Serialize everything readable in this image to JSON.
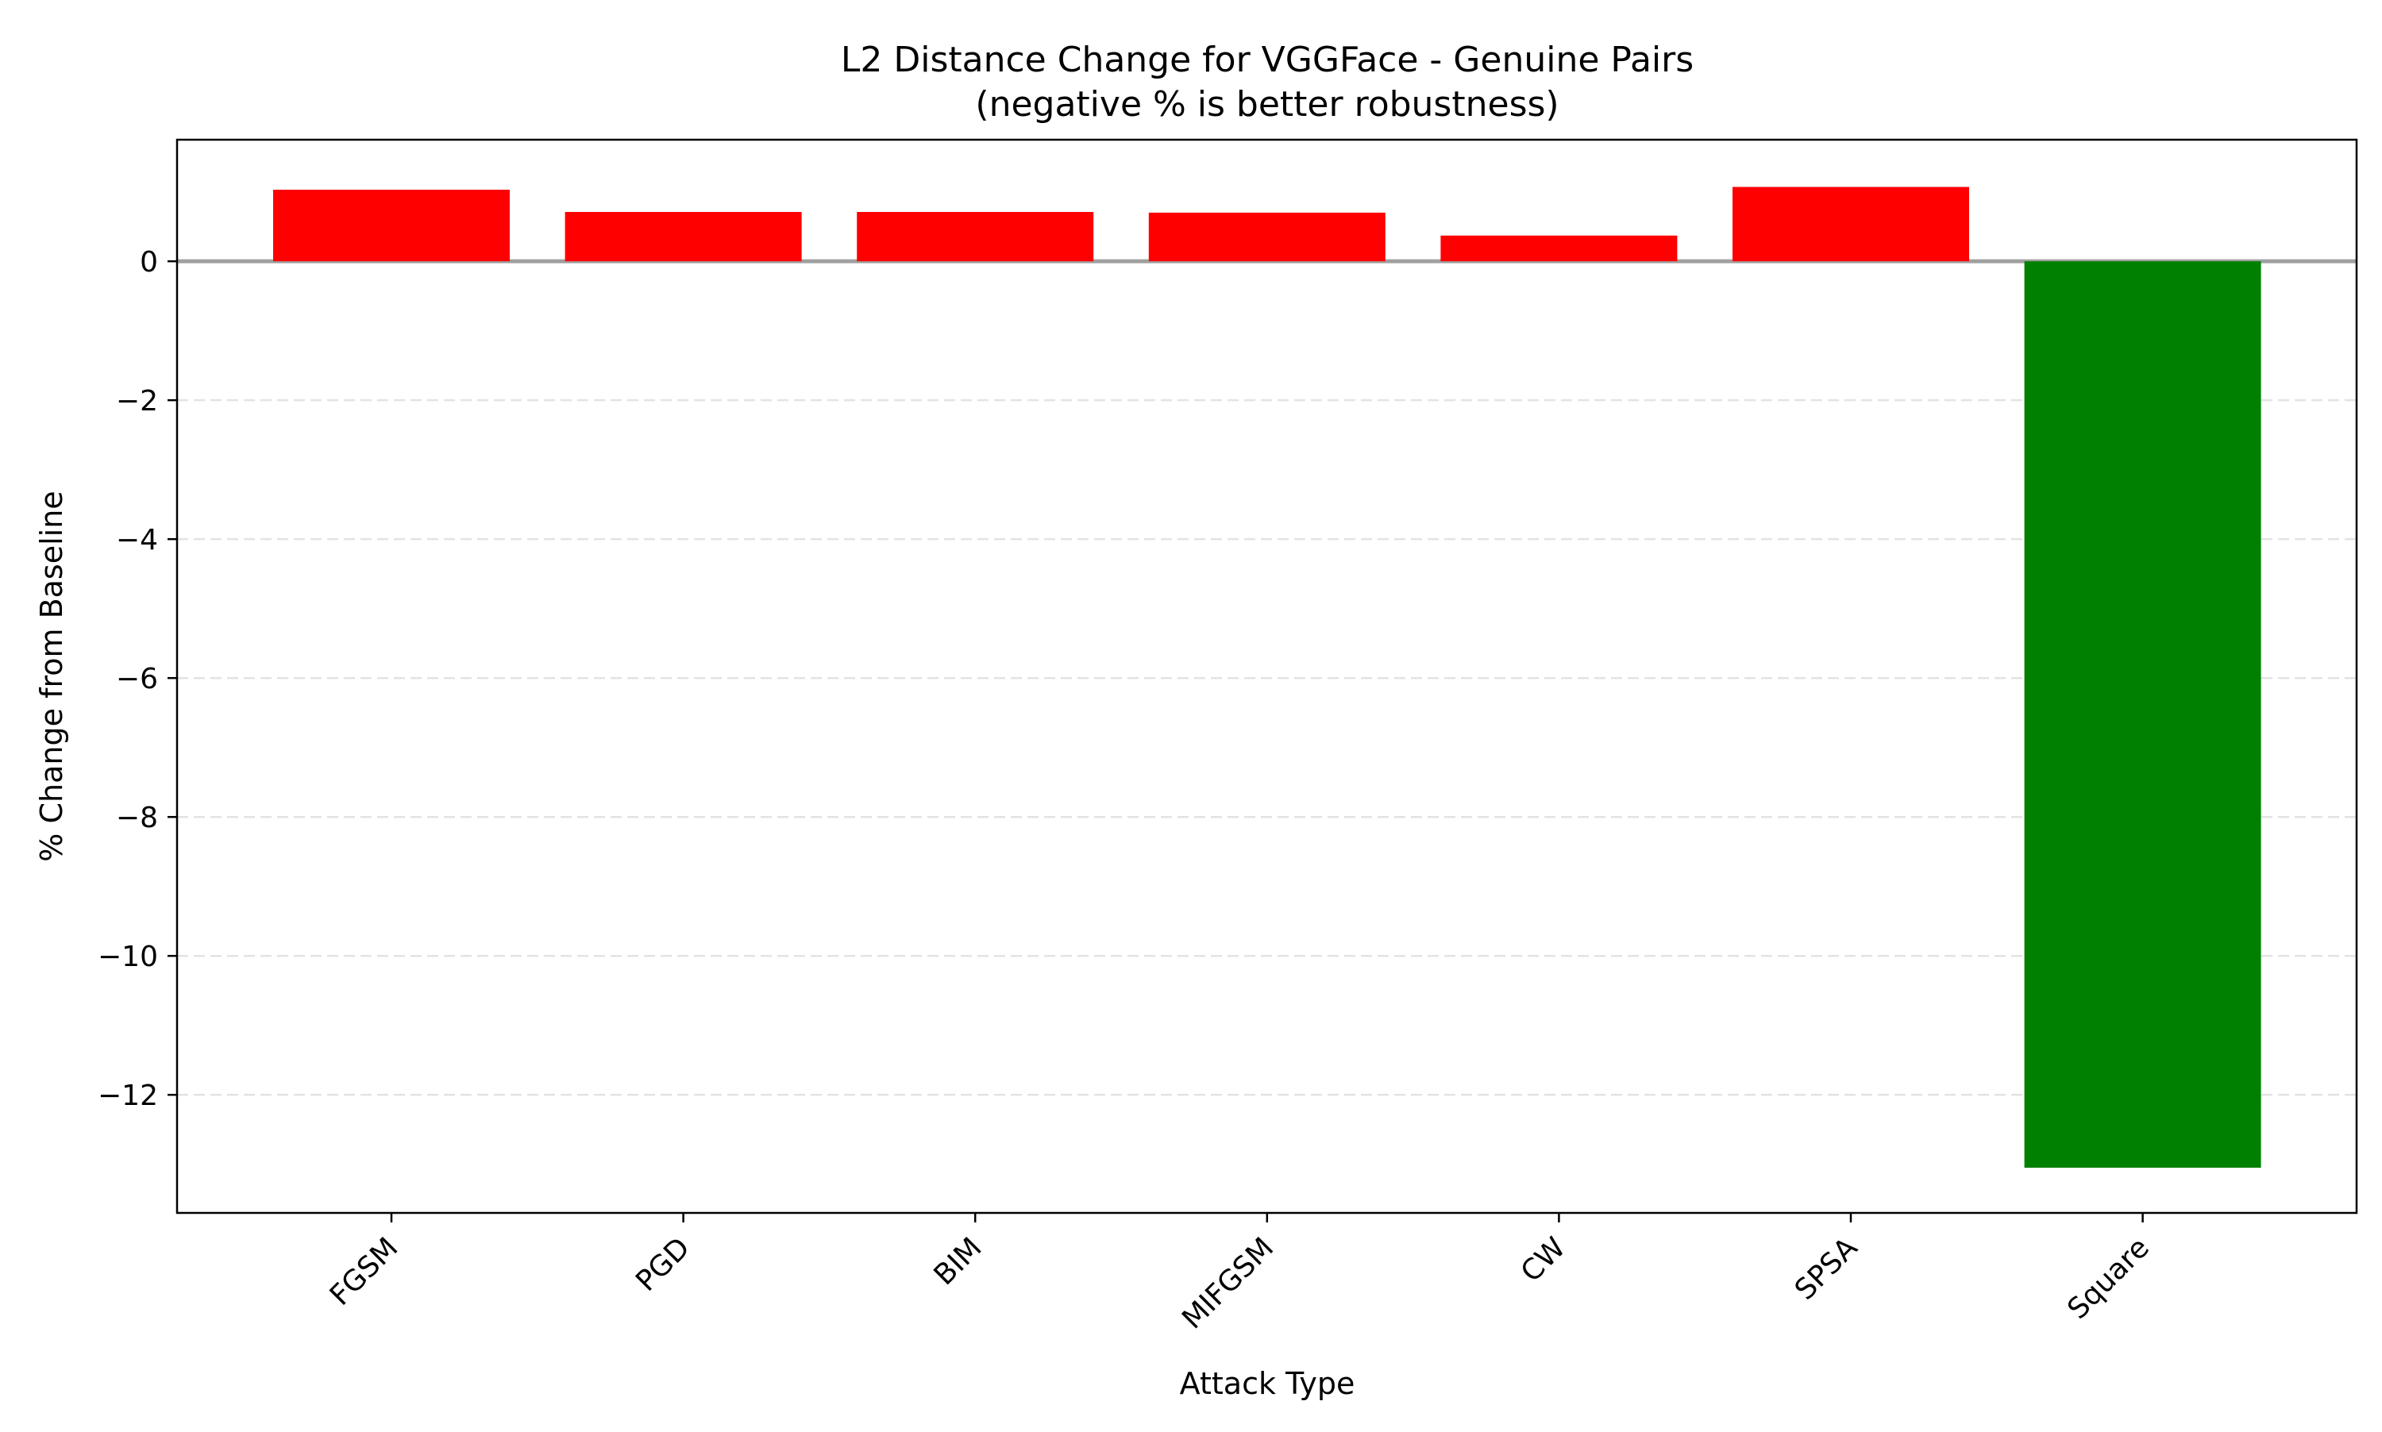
{
  "chart_data": {
    "type": "bar",
    "title": "L2 Distance Change for VGGFace - Genuine Pairs",
    "subtitle": "(negative % is better robustness)",
    "xlabel": "Attack Type",
    "ylabel": "% Change from Baseline",
    "categories": [
      "FGSM",
      "PGD",
      "BIM",
      "MIFGSM",
      "CW",
      "SPSA",
      "Square"
    ],
    "values": [
      1.03,
      0.71,
      0.71,
      0.7,
      0.37,
      1.07,
      -13.05
    ],
    "ylim": [
      -13.7,
      1.75
    ],
    "yticks": [
      0,
      -2,
      -4,
      -6,
      -8,
      -10,
      -12
    ],
    "ytick_labels": [
      "0",
      "−2",
      "−4",
      "−6",
      "−8",
      "−10",
      "−12"
    ],
    "grid": "y-dashed",
    "colors": {
      "positive": "#ff0000",
      "negative": "#008000",
      "zero_line": "#a0a0a0",
      "grid": "#e3e3e3",
      "axes": "#000000"
    }
  }
}
